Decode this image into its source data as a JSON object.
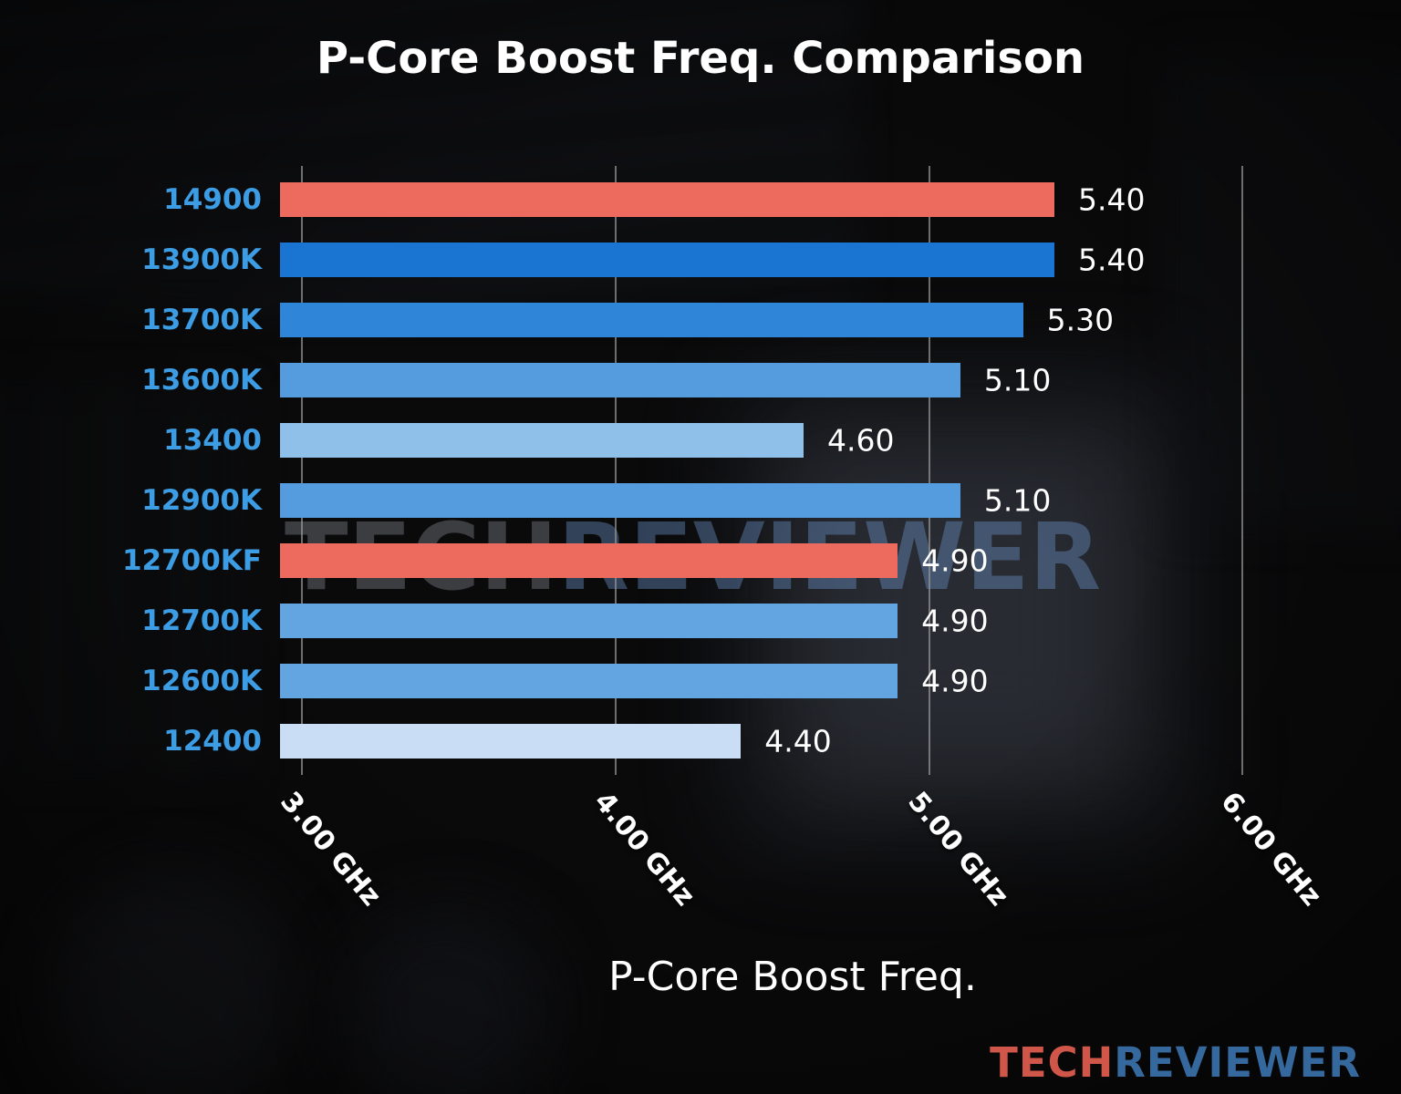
{
  "title": "P-Core Boost Freq. Comparison",
  "watermark": {
    "part1": "TECH",
    "part2": "REVIEWER"
  },
  "brand": {
    "part1": "TECH",
    "part2": "REVIEWER"
  },
  "colors": {
    "category_label": "#3d9de4",
    "highlight_bar": "#ed6a5e",
    "gridline": "#969696",
    "brand_tech": "#cf5648",
    "brand_reviewer": "#35689d"
  },
  "chart_data": {
    "type": "bar",
    "orientation": "horizontal",
    "title": "P-Core Boost Freq. Comparison",
    "xlabel": "P-Core Boost Freq.",
    "ylabel": "",
    "unit": "GHz",
    "grid": true,
    "xlim": [
      2.93,
      6.2
    ],
    "x_ticks": [
      {
        "value": 3.0,
        "label": "3.00 GHz"
      },
      {
        "value": 4.0,
        "label": "4.00 GHz"
      },
      {
        "value": 5.0,
        "label": "5.00 GHz"
      },
      {
        "value": 6.0,
        "label": "6.00 GHz"
      }
    ],
    "categories": [
      "14900",
      "13900K",
      "13700K",
      "13600K",
      "13400",
      "12900K",
      "12700KF",
      "12700K",
      "12600K",
      "12400"
    ],
    "values": [
      5.4,
      5.4,
      5.3,
      5.1,
      4.6,
      5.1,
      4.9,
      4.9,
      4.9,
      4.4
    ],
    "value_labels": [
      "5.40",
      "5.40",
      "5.30",
      "5.10",
      "4.60",
      "5.10",
      "4.90",
      "4.90",
      "4.90",
      "4.40"
    ],
    "bar_colors": [
      "#ed6a5e",
      "#1a75d2",
      "#2f86d9",
      "#559cde",
      "#8fc0ea",
      "#559cde",
      "#ed6a5e",
      "#63a5e1",
      "#63a5e1",
      "#c9def4"
    ]
  }
}
